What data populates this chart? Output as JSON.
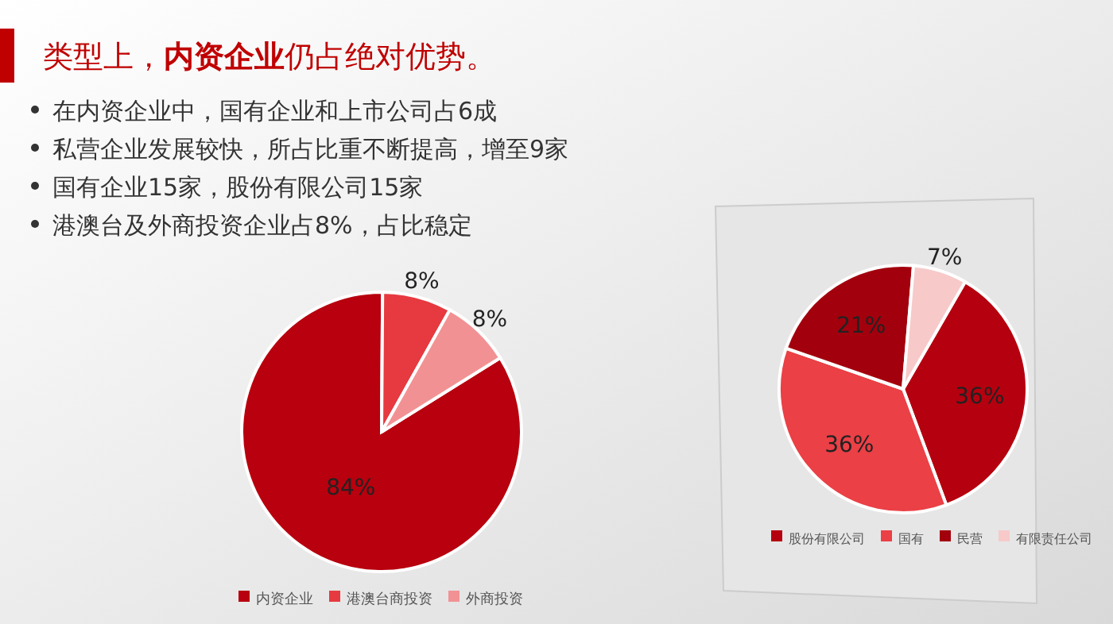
{
  "chart_data": [
    {
      "type": "pie",
      "title": "类型上，**内资企业**仍占绝对优势。",
      "annotations": [
        "在内资企业中，国有企业和上市公司占6成",
        "私营企业发展较快，所占比重不断提高，增至9家",
        "国有企业15家，股份有限公司15家",
        "港澳台及外商投资企业占8%，占比稳定"
      ],
      "categories": [
        "内资企业",
        "港澳台商投资",
        "外商投资"
      ],
      "values": [
        84,
        8,
        8
      ],
      "colors": [
        "#b8000e",
        "#e63a40",
        "#f29193"
      ],
      "legend": "bottom",
      "value_labels": [
        "84%",
        "8%",
        "8%"
      ]
    },
    {
      "type": "pie",
      "categories": [
        "股份有限公司",
        "国有",
        "民营",
        "有限责任公司"
      ],
      "values": [
        36,
        36,
        21,
        7
      ],
      "colors": [
        "#b5000f",
        "#ea4046",
        "#a3000d",
        "#f7c9c9"
      ],
      "legend": "bottom",
      "value_labels": [
        "36%",
        "36%",
        "21%",
        "7%"
      ]
    }
  ]
}
